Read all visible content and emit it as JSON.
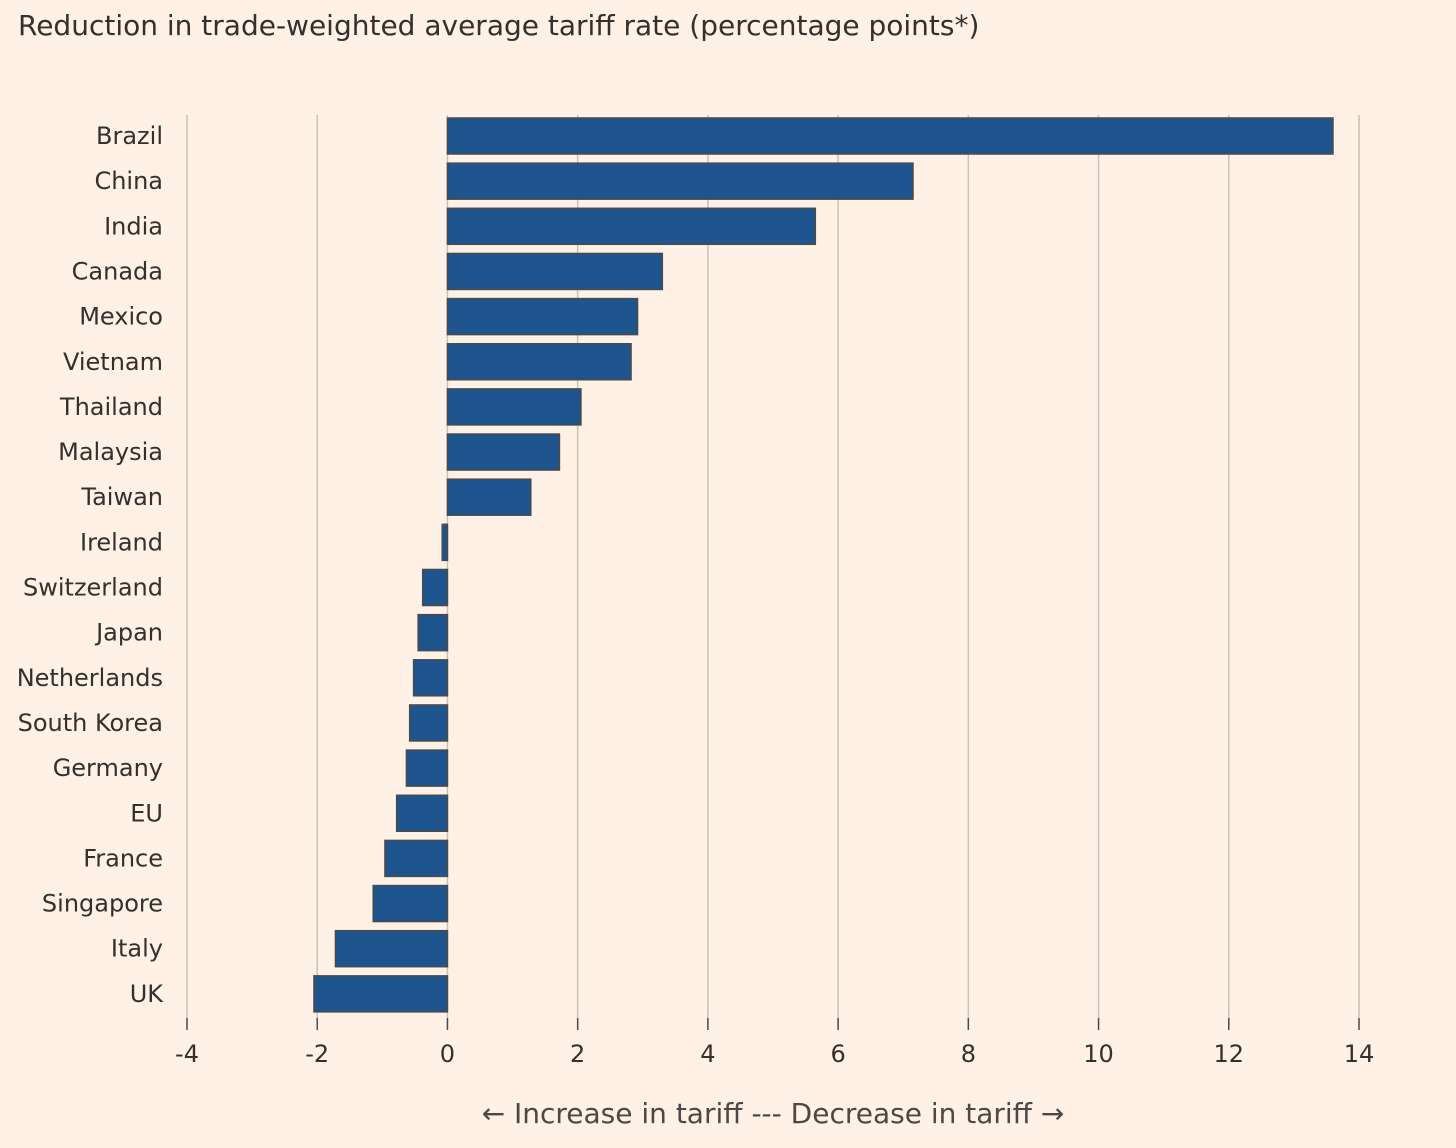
{
  "chart_data": {
    "type": "bar",
    "orientation": "horizontal",
    "title": "Reduction in trade-weighted average tariff rate (percentage points*)",
    "xlabel_left_arrow": "←",
    "xlabel": "Increase in tariff --- Decrease in tariff",
    "xlabel_right_arrow": "→",
    "ylabel": "",
    "categories": [
      "Brazil",
      "China",
      "India",
      "Canada",
      "Mexico",
      "Vietnam",
      "Thailand",
      "Malaysia",
      "Taiwan",
      "Ireland",
      "Switzerland",
      "Japan",
      "Netherlands",
      "South Korea",
      "Germany",
      "EU",
      "France",
      "Singapore",
      "Italy",
      "UK"
    ],
    "values": [
      13.6,
      7.15,
      5.65,
      3.3,
      2.92,
      2.82,
      2.05,
      1.72,
      1.28,
      -0.08,
      -0.38,
      -0.45,
      -0.52,
      -0.58,
      -0.63,
      -0.78,
      -0.96,
      -1.14,
      -1.72,
      -2.05
    ],
    "xlim": [
      -4,
      14
    ],
    "xticks": [
      -4,
      -2,
      0,
      2,
      4,
      6,
      8,
      10,
      12,
      14
    ],
    "xtick_labels": [
      "-4",
      "-2",
      "0",
      "2",
      "4",
      "6",
      "8",
      "10",
      "12",
      "14"
    ],
    "grid": "vertical",
    "legend": "none",
    "colors": {
      "bar_fill": "#1f558e",
      "bar_stroke": "#4a4a4a",
      "gridline": "#c9c2b8",
      "background": "#fff1e5",
      "text": "#33302e"
    }
  }
}
